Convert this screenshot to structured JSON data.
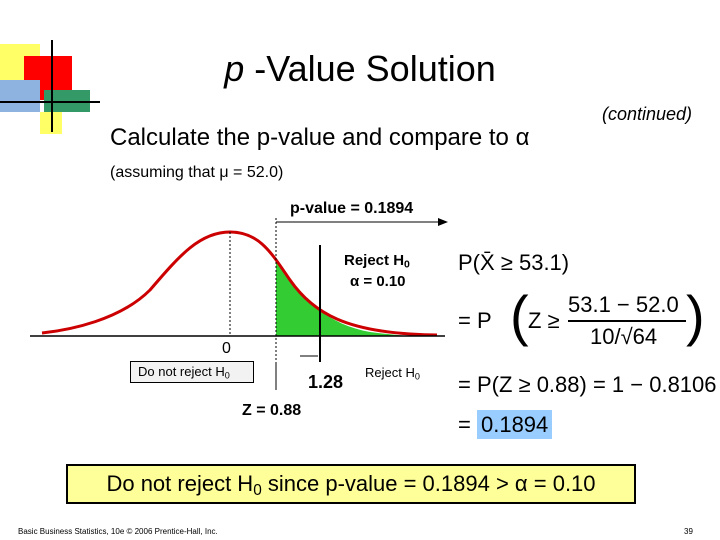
{
  "title": {
    "italic_part": "p",
    "rest": " -Value Solution"
  },
  "continued": "(continued)",
  "heading": {
    "text": "Calculate the p-value and compare to ",
    "symbol": "α"
  },
  "assumption": "(assuming that μ = 52.0)",
  "diagram": {
    "pvalue_label": "p-value = 0.1894",
    "reject_label": "Reject H",
    "reject_sub": "0",
    "alpha_label": "α = 0.10",
    "zero_label": "0",
    "do_not_reject_label": "Do not reject H",
    "do_not_reject_sub": "0",
    "critical_value": "1.28",
    "reject_small_label": "Reject H",
    "reject_small_sub": "0",
    "z_label": "Z = 0.88",
    "shaded_color": "#33cc33",
    "curve_color": "#cc0000"
  },
  "equations": {
    "line1": "P(X̄ ≥ 53.1)",
    "line2_prefix": "= P",
    "line2_z": "Z ≥",
    "line2_num": "53.1 − 52.0",
    "line2_den": "10/√64",
    "line3": "= P(Z ≥ 0.88) = 1 − 0.8106",
    "line4_prefix": "=",
    "line4_value": "0.1894",
    "highlight_color": "#99ccff"
  },
  "conclusion": {
    "part1": "Do not reject H",
    "sub": "0",
    "part2": " since p-value = 0.1894 > α = 0.10"
  },
  "footer": "Basic Business Statistics, 10e © 2006 Prentice-Hall, Inc.",
  "page_number": "39",
  "colors": {
    "conclusion_bg": "#ffff99",
    "accent_red": "#ff0000",
    "accent_yellow": "#ffff66",
    "accent_green": "#339966"
  }
}
